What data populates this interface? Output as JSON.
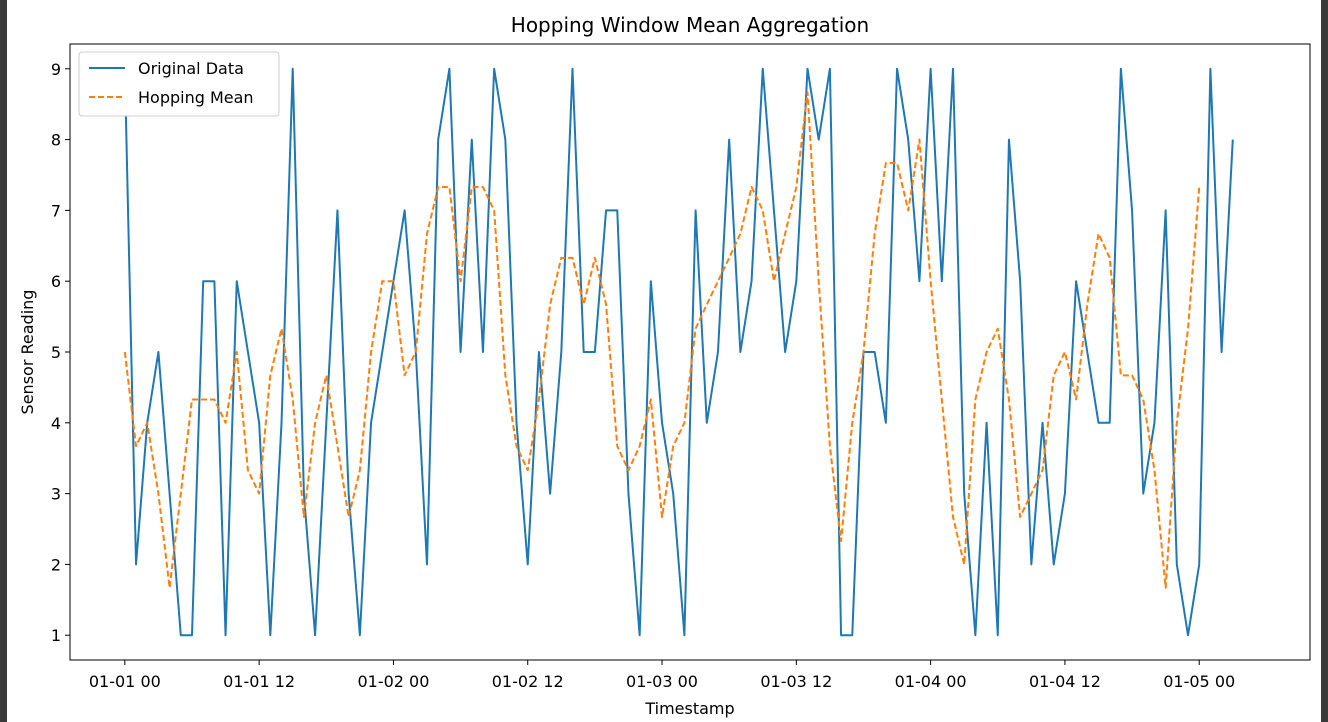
{
  "chart_data": {
    "type": "line",
    "title": "Hopping Window Mean Aggregation",
    "xlabel": "Timestamp",
    "ylabel": "Sensor Reading",
    "x_start": "2024-01-01 00:00",
    "x_step_hours": 1,
    "xlim_index": [
      -4.9,
      105.9
    ],
    "ylim": [
      0.65,
      9.35
    ],
    "y_ticks": [
      1,
      2,
      3,
      4,
      5,
      6,
      7,
      8,
      9
    ],
    "x_ticks": [
      {
        "index": 0,
        "label": "01-01 00"
      },
      {
        "index": 12,
        "label": "01-01 12"
      },
      {
        "index": 24,
        "label": "01-02 00"
      },
      {
        "index": 36,
        "label": "01-02 12"
      },
      {
        "index": 48,
        "label": "01-03 00"
      },
      {
        "index": 60,
        "label": "01-03 12"
      },
      {
        "index": 72,
        "label": "01-04 00"
      },
      {
        "index": 84,
        "label": "01-04 12"
      },
      {
        "index": 96,
        "label": "01-05 00"
      }
    ],
    "legend_position": "top-left",
    "grid": false,
    "series": [
      {
        "name": "Original Data",
        "color": "#1f77b4",
        "style": "solid",
        "x_start_index": 0,
        "values": [
          9,
          2,
          4,
          5,
          3,
          1,
          1,
          6,
          6,
          1,
          6,
          5,
          4,
          1,
          4,
          9,
          3,
          1,
          4,
          7,
          3,
          1,
          4,
          5,
          6,
          7,
          5,
          2,
          8,
          9,
          5,
          8,
          5,
          9,
          8,
          4,
          2,
          5,
          3,
          5,
          9,
          5,
          5,
          7,
          7,
          3,
          1,
          6,
          4,
          3,
          1,
          7,
          4,
          5,
          8,
          5,
          6,
          9,
          7,
          5,
          6,
          9,
          8,
          9,
          1,
          1,
          5,
          5,
          4,
          9,
          8,
          6,
          9,
          6,
          9,
          3,
          1,
          4,
          1,
          8,
          6,
          2,
          4,
          2,
          3,
          6,
          5,
          4,
          4,
          9,
          7,
          3,
          4,
          7,
          2,
          1,
          2,
          9,
          5,
          8
        ]
      },
      {
        "name": "Hopping Mean",
        "color": "#ff7f0e",
        "style": "dashed",
        "x_start_index": 0,
        "values": [
          5,
          3.67,
          4,
          3,
          1.67,
          3,
          4.33,
          4.33,
          4.33,
          4,
          5,
          3.33,
          3,
          4.67,
          5.33,
          4.33,
          2.67,
          4,
          4.67,
          3.67,
          2.67,
          3.33,
          5,
          6,
          6,
          4.67,
          5,
          6.67,
          7.33,
          7.33,
          6,
          7.33,
          7.33,
          7,
          4.67,
          3.67,
          3.33,
          4.33,
          5.67,
          6.33,
          6.33,
          5.67,
          6.33,
          5.67,
          3.67,
          3.33,
          3.67,
          4.33,
          2.67,
          3.67,
          4,
          5.33,
          5.67,
          6,
          6.33,
          6.67,
          7.33,
          7,
          6,
          6.67,
          7.33,
          8.67,
          6,
          3.67,
          2.33,
          4,
          5,
          6.67,
          7.67,
          7.67,
          7,
          8,
          6,
          4.33,
          2.67,
          2,
          4.33,
          5,
          5.33,
          4.33,
          2.67,
          3,
          3.33,
          4.67,
          5,
          4.33,
          5.67,
          6.67,
          6.33,
          4.67,
          4.67,
          4.33,
          3.33,
          1.67,
          4,
          5.33,
          7.33
        ]
      }
    ]
  }
}
